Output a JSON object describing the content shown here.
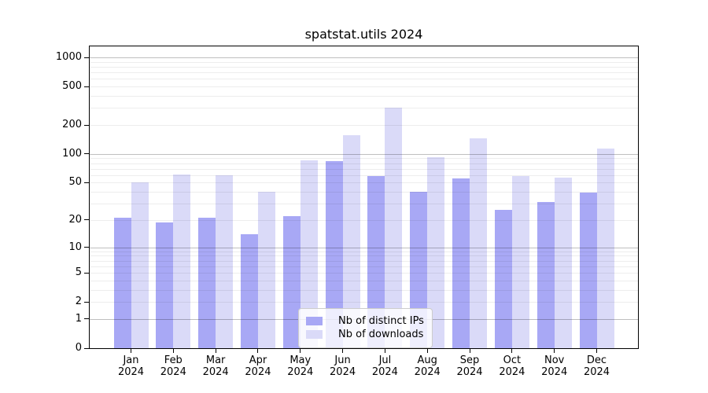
{
  "title": "spatstat.utils 2024",
  "legend": {
    "position": "lower center",
    "items": [
      {
        "label": "Nb of distinct IPs",
        "series": "distinct_ips"
      },
      {
        "label": "Nb of downloads",
        "series": "downloads"
      }
    ]
  },
  "colors": {
    "distinct_ips": "#a8a8f5",
    "downloads": "#dadaf8",
    "grid_major": "rgba(0,0,0,0.25)",
    "grid_minor": "rgba(0,0,0,0.07)",
    "axis": "#000000",
    "legend_border": "#cccccc",
    "legend_bg": "rgba(255,255,255,0.8)"
  },
  "chart_data": {
    "type": "bar",
    "scale": "log1p",
    "title": "spatstat.utils 2024",
    "xlabel": "",
    "ylabel": "",
    "categories": [
      "Jan",
      "Feb",
      "Mar",
      "Apr",
      "May",
      "Jun",
      "Jul",
      "Aug",
      "Sep",
      "Oct",
      "Nov",
      "Dec"
    ],
    "year_label": "2024",
    "series": [
      {
        "name": "Nb of distinct IPs",
        "values": [
          21,
          19,
          21,
          14,
          22,
          84,
          59,
          40,
          55,
          26,
          31,
          39
        ]
      },
      {
        "name": "Nb of downloads",
        "values": [
          50,
          61,
          60,
          40,
          86,
          158,
          302,
          93,
          146,
          59,
          57,
          114
        ]
      }
    ],
    "yticks": [
      1000,
      500,
      200,
      100,
      50,
      20,
      10,
      5,
      2,
      1,
      0
    ],
    "ylim": [
      0,
      1300
    ],
    "grid": "horizontal log gridlines: major at powers of 10, faint minors at 2-9 multiples, drawn over bars",
    "legend_position": "lower center"
  }
}
